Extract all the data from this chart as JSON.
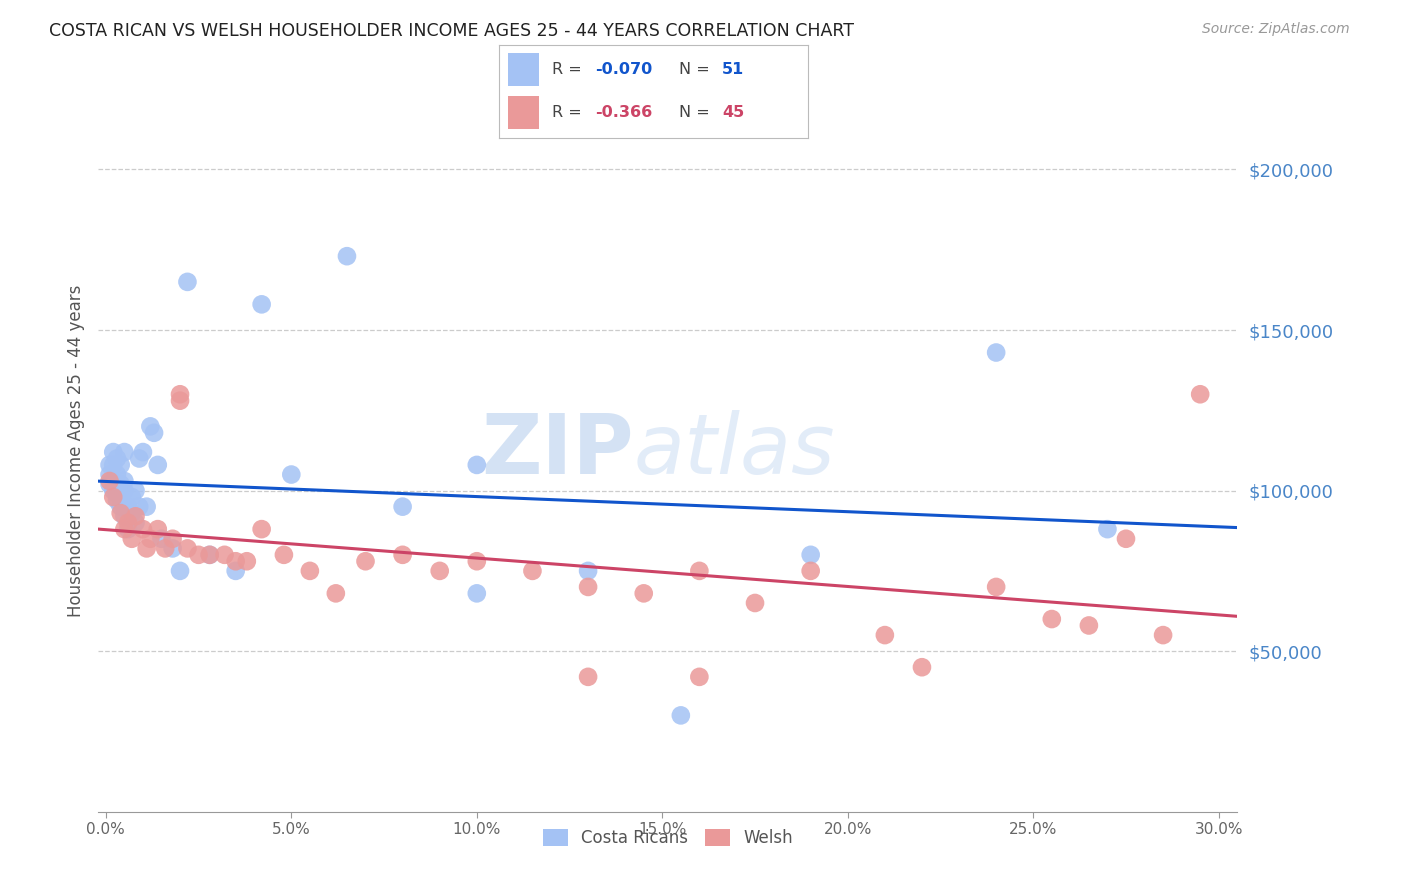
{
  "title": "COSTA RICAN VS WELSH HOUSEHOLDER INCOME AGES 25 - 44 YEARS CORRELATION CHART",
  "source": "Source: ZipAtlas.com",
  "ylabel": "Householder Income Ages 25 - 44 years",
  "xlabel_ticks": [
    "0.0%",
    "5.0%",
    "10.0%",
    "15.0%",
    "20.0%",
    "25.0%",
    "30.0%"
  ],
  "xlabel_vals": [
    0.0,
    0.05,
    0.1,
    0.15,
    0.2,
    0.25,
    0.3
  ],
  "ytick_labels": [
    "$50,000",
    "$100,000",
    "$150,000",
    "$200,000"
  ],
  "ytick_vals": [
    50000,
    100000,
    150000,
    200000
  ],
  "ylim": [
    0,
    225000
  ],
  "xlim": [
    -0.002,
    0.305
  ],
  "legend_cr_R": "-0.070",
  "legend_cr_N": "51",
  "legend_welsh_R": "-0.366",
  "legend_welsh_N": "45",
  "cr_color": "#a4c2f4",
  "welsh_color": "#ea9999",
  "cr_line_color": "#1155cc",
  "welsh_line_color": "#cc4466",
  "watermark_zip": "ZIP",
  "watermark_atlas": "atlas",
  "background_color": "#ffffff",
  "costa_rican_x": [
    0.001,
    0.001,
    0.001,
    0.002,
    0.002,
    0.002,
    0.002,
    0.003,
    0.003,
    0.003,
    0.003,
    0.003,
    0.004,
    0.004,
    0.004,
    0.004,
    0.005,
    0.005,
    0.005,
    0.005,
    0.005,
    0.006,
    0.006,
    0.007,
    0.007,
    0.008,
    0.008,
    0.009,
    0.009,
    0.01,
    0.011,
    0.012,
    0.013,
    0.014,
    0.015,
    0.018,
    0.02,
    0.022,
    0.028,
    0.035,
    0.042,
    0.05,
    0.065,
    0.08,
    0.1,
    0.13,
    0.155,
    0.19,
    0.24,
    0.27,
    0.1
  ],
  "costa_rican_y": [
    102000,
    105000,
    108000,
    100000,
    103000,
    108000,
    112000,
    97000,
    99000,
    102000,
    105000,
    110000,
    95000,
    98000,
    102000,
    108000,
    92000,
    95000,
    100000,
    103000,
    112000,
    88000,
    95000,
    93000,
    98000,
    90000,
    100000,
    95000,
    110000,
    112000,
    95000,
    120000,
    118000,
    108000,
    85000,
    82000,
    75000,
    165000,
    80000,
    75000,
    158000,
    105000,
    173000,
    95000,
    68000,
    75000,
    30000,
    80000,
    143000,
    88000,
    108000
  ],
  "welsh_x": [
    0.001,
    0.002,
    0.004,
    0.005,
    0.006,
    0.007,
    0.008,
    0.01,
    0.011,
    0.012,
    0.014,
    0.016,
    0.018,
    0.02,
    0.022,
    0.025,
    0.028,
    0.032,
    0.035,
    0.038,
    0.042,
    0.048,
    0.055,
    0.062,
    0.07,
    0.08,
    0.09,
    0.1,
    0.115,
    0.13,
    0.145,
    0.16,
    0.175,
    0.19,
    0.21,
    0.22,
    0.24,
    0.255,
    0.265,
    0.275,
    0.285,
    0.295,
    0.13,
    0.16,
    0.02
  ],
  "welsh_y": [
    103000,
    98000,
    93000,
    88000,
    90000,
    85000,
    92000,
    88000,
    82000,
    85000,
    88000,
    82000,
    85000,
    130000,
    82000,
    80000,
    80000,
    80000,
    78000,
    78000,
    88000,
    80000,
    75000,
    68000,
    78000,
    80000,
    75000,
    78000,
    75000,
    70000,
    68000,
    75000,
    65000,
    75000,
    55000,
    45000,
    70000,
    60000,
    58000,
    85000,
    55000,
    130000,
    42000,
    42000,
    128000
  ]
}
